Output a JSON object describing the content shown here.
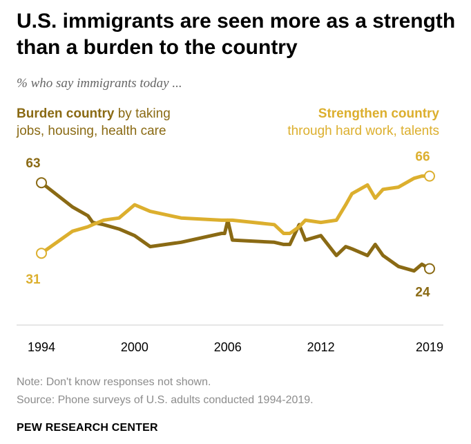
{
  "title": "U.S. immigrants are seen more as a strength than a burden to the country",
  "subtitle": "% who say immigrants today ...",
  "legend": {
    "burden_bold": "Burden country",
    "burden_rest_1": " by taking",
    "burden_rest_2": "jobs, housing, health care",
    "strength_bold": "Strengthen country",
    "strength_rest": "through hard work, talents"
  },
  "note": "Note: Don't know responses not shown.",
  "source": "Source: Phone surveys of U.S. adults conducted 1994-2019.",
  "branding": "PEW RESEARCH CENTER",
  "colors": {
    "burden": "#8a6a14",
    "strength": "#dcaf2e",
    "axis": "#cccccc"
  },
  "chart_data": {
    "type": "line",
    "x_ticks": [
      1994,
      2000,
      2006,
      2012,
      2019
    ],
    "xlim": [
      1994,
      2019
    ],
    "ylim": [
      0,
      80
    ],
    "grid": false,
    "series": [
      {
        "name": "Burden country",
        "color": "#8a6a14",
        "x": [
          1994,
          1996,
          1997,
          1997.3,
          1998,
          1999,
          2000,
          2001,
          2003,
          2005.6,
          2005.8,
          2006,
          2006.3,
          2009,
          2009.6,
          2010,
          2010.6,
          2011,
          2012,
          2013,
          2013.6,
          2014,
          2015,
          2015.5,
          2016,
          2017,
          2018,
          2018.5,
          2019
        ],
        "y": [
          63,
          52,
          48,
          45,
          44,
          42,
          39,
          34,
          36,
          40,
          40,
          46,
          37,
          36,
          35,
          35,
          44,
          37,
          39,
          30,
          34,
          33,
          30,
          35,
          30,
          25,
          23,
          26,
          24
        ]
      },
      {
        "name": "Strengthen country",
        "color": "#dcaf2e",
        "x": [
          1994,
          1996,
          1997,
          1997.3,
          1998,
          1999,
          2000,
          2001,
          2003,
          2005.6,
          2005.8,
          2006,
          2006.3,
          2009,
          2009.6,
          2010,
          2010.6,
          2011,
          2012,
          2013,
          2013.6,
          2014,
          2015,
          2015.5,
          2016,
          2017,
          2018,
          2018.5,
          2019
        ],
        "y": [
          31,
          41,
          43,
          44,
          46,
          47,
          53,
          50,
          47,
          46,
          46,
          46,
          46,
          44,
          40,
          40,
          43,
          46,
          45,
          46,
          53,
          58,
          62,
          56,
          60,
          61,
          65,
          66,
          66
        ]
      }
    ],
    "end_labels": {
      "burden_start": "63",
      "burden_end": "24",
      "strength_start": "31",
      "strength_end": "66"
    }
  }
}
